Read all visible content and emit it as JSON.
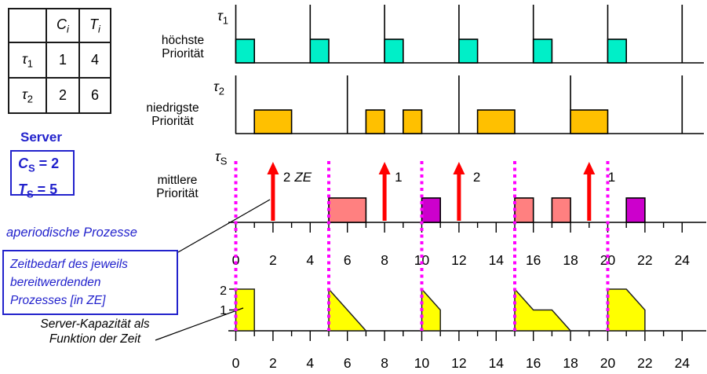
{
  "task_table": {
    "col_headers": [
      {
        "base": "C",
        "sub": "i"
      },
      {
        "base": "T",
        "sub": "i"
      }
    ],
    "rows": [
      {
        "name": {
          "base": "τ",
          "sub": "1"
        },
        "C": "1",
        "T": "4"
      },
      {
        "name": {
          "base": "τ",
          "sub": "2"
        },
        "C": "2",
        "T": "6"
      }
    ]
  },
  "server_panel": {
    "title": "Server",
    "params": [
      {
        "base": "C",
        "sub": "S",
        "value": "= 2"
      },
      {
        "base": "T",
        "sub": "S",
        "value": "= 5"
      }
    ]
  },
  "annotations": {
    "aperiodic": "aperiodische Prozesse",
    "demand_box": [
      "Zeitbedarf des jeweils",
      "bereitwerdenden",
      "Prozesses [in ZE]"
    ],
    "capacity_note": [
      "Server-Kapazität als",
      "Funktion der Zeit"
    ]
  },
  "timelines": {
    "tau1": {
      "symbol": {
        "base": "τ",
        "sub": "1"
      },
      "priority": [
        "höchste",
        "Priorität"
      ],
      "releases": [
        0,
        4,
        8,
        12,
        16,
        20,
        24
      ],
      "executions": [
        {
          "t": 0,
          "len": 1
        },
        {
          "t": 4,
          "len": 1
        },
        {
          "t": 8,
          "len": 1
        },
        {
          "t": 12,
          "len": 1
        },
        {
          "t": 16,
          "len": 1
        },
        {
          "t": 20,
          "len": 1
        }
      ]
    },
    "tau2": {
      "symbol": {
        "base": "τ",
        "sub": "2"
      },
      "priority": [
        "niedrigste",
        "Priorität"
      ],
      "releases": [
        0,
        6,
        12,
        18,
        24
      ],
      "executions": [
        {
          "t": 1,
          "len": 2
        },
        {
          "t": 7,
          "len": 1
        },
        {
          "t": 9,
          "len": 1
        },
        {
          "t": 13,
          "len": 2
        },
        {
          "t": 18,
          "len": 2
        }
      ]
    },
    "server": {
      "symbol": {
        "base": "τ",
        "sub": "S"
      },
      "priority": [
        "mittlere",
        "Priorität"
      ],
      "arrivals": [
        {
          "t": 2,
          "num": "2",
          "unit": "ZE"
        },
        {
          "t": 8,
          "num": "1",
          "unit": ""
        },
        {
          "t": 12,
          "num": "2",
          "unit": ""
        },
        {
          "t": 19,
          "num": "1",
          "unit": ""
        }
      ],
      "executions": [
        {
          "t": 5,
          "len": 2,
          "color": "pink"
        },
        {
          "t": 10,
          "len": 1,
          "color": "magenta"
        },
        {
          "t": 15,
          "len": 1,
          "color": "pink"
        },
        {
          "t": 17,
          "len": 1,
          "color": "pink"
        },
        {
          "t": 21,
          "len": 1,
          "color": "magenta"
        }
      ]
    }
  },
  "replenishment_times": [
    0,
    5,
    10,
    15,
    20
  ],
  "axis": {
    "min": 0,
    "max": 24,
    "major_step": 2,
    "labels": [
      "0",
      "2",
      "4",
      "6",
      "8",
      "10",
      "12",
      "14",
      "16",
      "18",
      "20",
      "22",
      "24"
    ]
  },
  "capacity_chart": {
    "y_labels": [
      "2",
      "1"
    ],
    "profile": [
      [
        [
          0,
          2
        ],
        [
          1,
          2
        ],
        [
          1,
          0
        ]
      ],
      [
        [
          5,
          2
        ],
        [
          7,
          0
        ]
      ],
      [
        [
          10,
          2
        ],
        [
          11,
          1
        ],
        [
          11,
          0
        ]
      ],
      [
        [
          15,
          2
        ],
        [
          16,
          1
        ],
        [
          17,
          1
        ],
        [
          18,
          0
        ]
      ],
      [
        [
          20,
          2
        ],
        [
          21,
          2
        ],
        [
          22,
          1
        ],
        [
          22,
          0
        ]
      ]
    ]
  },
  "colors": {
    "tau1_fill": "#00efc8",
    "tau2_fill": "#ffc000",
    "server_pink": "#ff8080",
    "server_magenta": "#cc00cc",
    "arrow_red": "#ff0000",
    "replenish_magenta": "#ff00ff",
    "capacity_yellow": "#ffff00",
    "accent_blue": "#2222cc"
  }
}
